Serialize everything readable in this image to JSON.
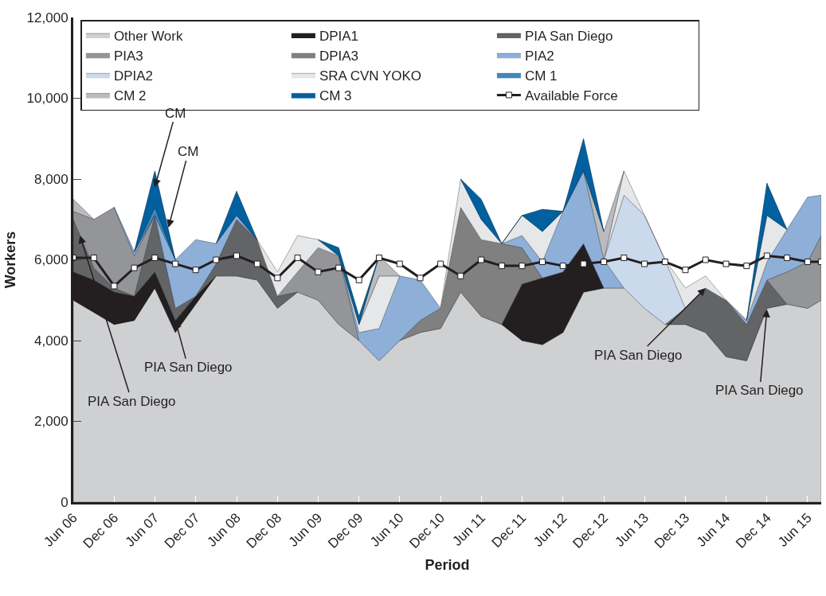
{
  "chart_data": {
    "type": "area",
    "stacked": true,
    "xlabel": "Period",
    "ylabel": "Workers",
    "legend": "top",
    "grid": false,
    "x": [
      "2006-06",
      "2006-09",
      "2006-12",
      "2007-03",
      "2007-06",
      "2007-09",
      "2007-12",
      "2008-03",
      "2008-06",
      "2008-09",
      "2008-12",
      "2009-03",
      "2009-06",
      "2009-09",
      "2009-12",
      "2010-03",
      "2010-06",
      "2010-09",
      "2010-12",
      "2011-03",
      "2011-06",
      "2011-09",
      "2011-12",
      "2012-03",
      "2012-06",
      "2012-09",
      "2012-12",
      "2013-03",
      "2013-06",
      "2013-09",
      "2013-12",
      "2014-03",
      "2014-06",
      "2014-09",
      "2014-12",
      "2015-03",
      "2015-06",
      "2015-08"
    ],
    "xlim": [
      "2006-06",
      "2015-08"
    ],
    "xticks": [
      {
        "value": "2006-06",
        "label": "Jun 06"
      },
      {
        "value": "2006-12",
        "label": "Dec 06"
      },
      {
        "value": "2007-06",
        "label": "Jun 07"
      },
      {
        "value": "2007-12",
        "label": "Dec 07"
      },
      {
        "value": "2008-06",
        "label": "Jun 08"
      },
      {
        "value": "2008-12",
        "label": "Dec 08"
      },
      {
        "value": "2009-06",
        "label": "Jun 09"
      },
      {
        "value": "2009-12",
        "label": "Dec 09"
      },
      {
        "value": "2010-06",
        "label": "Jun 10"
      },
      {
        "value": "2010-12",
        "label": "Dec 10"
      },
      {
        "value": "2011-06",
        "label": "Jun 11"
      },
      {
        "value": "2011-12",
        "label": "Dec 11"
      },
      {
        "value": "2012-06",
        "label": "Jun 12"
      },
      {
        "value": "2012-12",
        "label": "Dec 12"
      },
      {
        "value": "2013-06",
        "label": "Jun 13"
      },
      {
        "value": "2013-12",
        "label": "Dec 13"
      },
      {
        "value": "2014-06",
        "label": "Jun 14"
      },
      {
        "value": "2014-12",
        "label": "Dec 14"
      },
      {
        "value": "2015-06",
        "label": "Jun 15"
      }
    ],
    "ylim": [
      0,
      12000
    ],
    "yticks": [
      0,
      {
        "value": 2000,
        "label": "2,000"
      },
      {
        "value": 4000,
        "label": "4,000"
      },
      {
        "value": 6000,
        "label": "6,000"
      },
      {
        "value": 8000,
        "label": "8,000"
      },
      {
        "value": 10000,
        "label": "10,000"
      },
      {
        "value": 12000,
        "label": "12,000"
      }
    ],
    "series": [
      {
        "name": "Other Work",
        "color": "#cfd0d2",
        "values": [
          5000,
          4700,
          4400,
          4500,
          5300,
          4200,
          4900,
          5600,
          5600,
          5500,
          4800,
          5200,
          5000,
          4400,
          4000,
          3500,
          4000,
          4200,
          4300,
          5200,
          4600,
          4400,
          4000,
          3900,
          4200,
          5200,
          5300,
          5300,
          4800,
          4400,
          4400,
          4200,
          3600,
          3500,
          4800,
          4900,
          4800,
          5000
        ]
      },
      {
        "name": "DPIA1",
        "color": "#231f20",
        "values": [
          700,
          800,
          800,
          600,
          400,
          300,
          200,
          0,
          null,
          null,
          null,
          null,
          null,
          null,
          null,
          null,
          null,
          null,
          null,
          null,
          null,
          0,
          1400,
          1650,
          1500,
          1200,
          0,
          null,
          null,
          null,
          null,
          null,
          null,
          null,
          null,
          null,
          null,
          null
        ]
      },
      {
        "name": "PIA San Diego",
        "color": "#636466",
        "values": [
          1300,
          300,
          100,
          0,
          1400,
          300,
          0,
          300,
          1400,
          1000,
          300,
          0,
          null,
          null,
          null,
          null,
          null,
          null,
          null,
          null,
          null,
          null,
          null,
          null,
          null,
          null,
          null,
          null,
          null,
          0,
          400,
          1100,
          1400,
          900,
          700,
          0,
          null,
          null
        ]
      },
      {
        "name": "PIA3",
        "color": "#939598",
        "values": [
          200,
          1200,
          2000,
          1000,
          0,
          null,
          null,
          null,
          null,
          null,
          0,
          500,
          1300,
          1700,
          0,
          null,
          null,
          null,
          null,
          null,
          null,
          null,
          null,
          null,
          null,
          null,
          null,
          null,
          null,
          null,
          null,
          null,
          null,
          null,
          0,
          800,
          1150,
          1600
        ]
      },
      {
        "name": "DPIA3",
        "color": "#808080",
        "values": [
          null,
          null,
          null,
          null,
          null,
          null,
          null,
          null,
          null,
          null,
          null,
          null,
          null,
          null,
          null,
          null,
          0,
          300,
          500,
          2100,
          1900,
          2000,
          900,
          0,
          null,
          null,
          null,
          null,
          null,
          null,
          null,
          null,
          null,
          null,
          null,
          null,
          null,
          null
        ]
      },
      {
        "name": "PIA2",
        "color": "#8eb0d8",
        "values": [
          null,
          null,
          0,
          100,
          0,
          1200,
          1400,
          500,
          100,
          0,
          null,
          null,
          null,
          0,
          200,
          800,
          1600,
          1000,
          0,
          null,
          null,
          0,
          300,
          400,
          1500,
          1800,
          700,
          0,
          null,
          null,
          null,
          null,
          0,
          100,
          450,
          1050,
          1600,
          1000
        ]
      },
      {
        "name": "DPIA2",
        "color": "#cbd9ec",
        "values": [
          null,
          null,
          null,
          null,
          null,
          null,
          null,
          null,
          null,
          null,
          null,
          null,
          null,
          null,
          null,
          null,
          null,
          null,
          null,
          null,
          null,
          null,
          null,
          null,
          null,
          null,
          0,
          2300,
          2300,
          1600,
          0,
          null,
          null,
          null,
          null,
          null,
          null,
          null
        ]
      },
      {
        "name": "SRA CVN YOKO",
        "color": "#e6e7e9",
        "values": [
          null,
          null,
          null,
          null,
          null,
          null,
          null,
          null,
          null,
          0,
          600,
          900,
          200,
          0,
          200,
          1300,
          0,
          null,
          0,
          700,
          500,
          0,
          500,
          750,
          0,
          null,
          0,
          600,
          0,
          0,
          500,
          300,
          0,
          0,
          1150,
          0,
          null,
          null
        ]
      },
      {
        "name": "CM 1",
        "color": "#3f87bf",
        "values": [
          null,
          null,
          null,
          0,
          200,
          0,
          null,
          null,
          null,
          null,
          null,
          null,
          null,
          null,
          null,
          null,
          null,
          null,
          null,
          null,
          null,
          null,
          null,
          null,
          null,
          null,
          null,
          null,
          null,
          null,
          null,
          null,
          null,
          null,
          null,
          null,
          null,
          null
        ]
      },
      {
        "name": "CM 2",
        "color": "#b9bbbf",
        "values": [
          300,
          0,
          null,
          null,
          null,
          null,
          null,
          null,
          null,
          null,
          null,
          null,
          null,
          null,
          0,
          500,
          0,
          null,
          null,
          null,
          null,
          null,
          null,
          null,
          null,
          0,
          700,
          0,
          null,
          null,
          null,
          null,
          null,
          null,
          null,
          null,
          null,
          null
        ]
      },
      {
        "name": "CM 3",
        "color": "#0060a0",
        "values": [
          null,
          null,
          null,
          0,
          900,
          0,
          null,
          0,
          600,
          0,
          null,
          null,
          0,
          200,
          200,
          0,
          null,
          null,
          null,
          0,
          500,
          0,
          0,
          550,
          0,
          800,
          0,
          null,
          null,
          null,
          null,
          null,
          null,
          0,
          800,
          0,
          null,
          null
        ]
      },
      {
        "name": "Available Force",
        "type": "line",
        "marker": "square",
        "color": "#231f20",
        "values": [
          6050,
          6050,
          5350,
          5800,
          6050,
          5900,
          5750,
          6000,
          6100,
          5900,
          5550,
          6050,
          5700,
          5800,
          5500,
          6050,
          5900,
          5550,
          5900,
          5600,
          6000,
          5850,
          5850,
          5950,
          5850,
          5900,
          5950,
          6050,
          5900,
          5950,
          5750,
          6000,
          5900,
          5850,
          6100,
          6050,
          5950,
          5950
        ]
      }
    ],
    "annotations": [
      {
        "text": "CM",
        "x": "2007-06",
        "y": 7800
      },
      {
        "text": "CM",
        "x": "2007-08",
        "y": 6800
      },
      {
        "text": "PIA San Diego",
        "x": "2006-07",
        "y": 6600
      },
      {
        "text": "PIA San Diego",
        "x": "2007-09",
        "y": 4500
      },
      {
        "text": "PIA San Diego",
        "x": "2014-03",
        "y": 5300
      },
      {
        "text": "PIA San Diego",
        "x": "2014-12",
        "y": 4770
      }
    ]
  }
}
